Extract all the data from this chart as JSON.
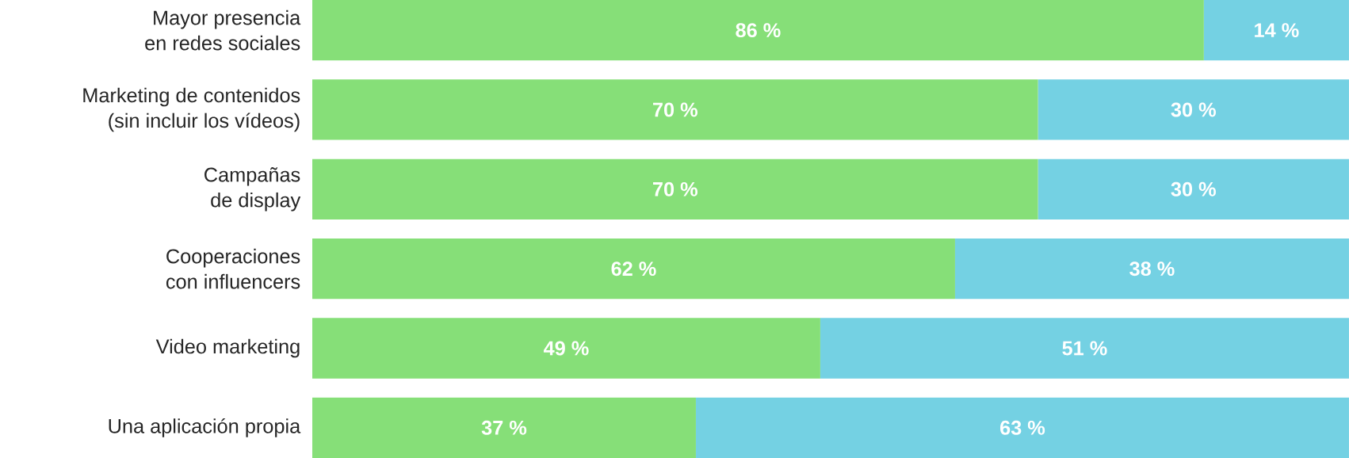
{
  "chart_data": {
    "type": "bar",
    "orientation": "horizontal",
    "stacked": true,
    "categories": [
      "Mayor presencia\nen redes sociales",
      "Marketing de contenidos\n(sin incluir los vídeos)",
      "Campañas\nde display",
      "Cooperaciones\ncon influencers",
      "Video marketing",
      "Una aplicación propia"
    ],
    "series": [
      {
        "color": "#86df78",
        "values": [
          86,
          70,
          70,
          62,
          49,
          37
        ],
        "value_labels": [
          "86 %",
          "70 %",
          "70 %",
          "62 %",
          "49 %",
          "37 %"
        ]
      },
      {
        "color": "#74d1e3",
        "values": [
          14,
          30,
          30,
          38,
          51,
          63
        ],
        "value_labels": [
          "14 %",
          "30 %",
          "30 %",
          "38 %",
          "51 %",
          "63 %"
        ]
      }
    ]
  }
}
